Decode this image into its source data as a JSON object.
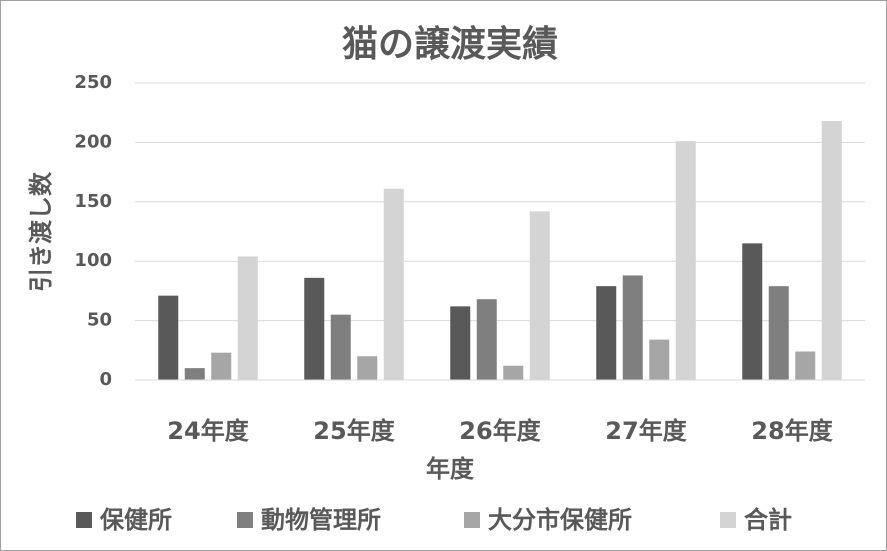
{
  "chart_data": {
    "type": "bar",
    "title": "猫の譲渡実績",
    "x_label": "年度",
    "y_label": "引き渡し数",
    "categories": [
      "24年度",
      "25年度",
      "26年度",
      "27年度",
      "28年度"
    ],
    "series": [
      {
        "name": "保健所",
        "color": "#595959",
        "values": [
          71,
          86,
          62,
          79,
          115
        ]
      },
      {
        "name": "動物管理所",
        "color": "#7f7f7f",
        "values": [
          10,
          55,
          68,
          88,
          79
        ]
      },
      {
        "name": "大分市保健所",
        "color": "#a6a6a6",
        "values": [
          23,
          20,
          12,
          34,
          24
        ]
      },
      {
        "name": "合計",
        "color": "#d4d4d4",
        "values": [
          104,
          161,
          142,
          201,
          218
        ]
      }
    ],
    "ylim": [
      0,
      250
    ],
    "yticks": [
      0,
      50,
      100,
      150,
      200,
      250
    ],
    "grid": true,
    "legend": "bottom"
  }
}
